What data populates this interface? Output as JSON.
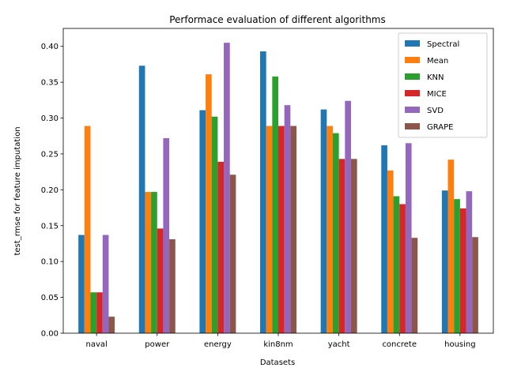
{
  "chart_data": {
    "type": "bar",
    "title": "Performace evaluation of different algorithms",
    "xlabel": "Datasets",
    "ylabel": "test_rmse for feature imputation",
    "ylim": [
      0,
      0.425
    ],
    "yticks": [
      0.0,
      0.05,
      0.1,
      0.15,
      0.2,
      0.25,
      0.3,
      0.35,
      0.4
    ],
    "ytick_labels": [
      "0.00",
      "0.05",
      "0.10",
      "0.15",
      "0.20",
      "0.25",
      "0.30",
      "0.35",
      "0.40"
    ],
    "grid": false,
    "legend_position": "top-right",
    "categories": [
      "naval",
      "power",
      "energy",
      "kin8nm",
      "yacht",
      "concrete",
      "housing"
    ],
    "series": [
      {
        "name": "Spectral",
        "color": "#1f77b4",
        "values": [
          0.137,
          0.373,
          0.311,
          0.393,
          0.312,
          0.262,
          0.199
        ]
      },
      {
        "name": "Mean",
        "color": "#ff7f0e",
        "values": [
          0.289,
          0.197,
          0.361,
          0.289,
          0.289,
          0.227,
          0.242
        ]
      },
      {
        "name": "KNN",
        "color": "#2ca02c",
        "values": [
          0.057,
          0.197,
          0.302,
          0.358,
          0.279,
          0.191,
          0.187
        ]
      },
      {
        "name": "MICE",
        "color": "#d62728",
        "values": [
          0.057,
          0.146,
          0.239,
          0.289,
          0.243,
          0.18,
          0.174
        ]
      },
      {
        "name": "SVD",
        "color": "#9467bd",
        "values": [
          0.137,
          0.272,
          0.405,
          0.318,
          0.324,
          0.265,
          0.198
        ]
      },
      {
        "name": "GRAPE",
        "color": "#8c564b",
        "values": [
          0.023,
          0.131,
          0.221,
          0.289,
          0.243,
          0.133,
          0.134
        ]
      }
    ]
  }
}
